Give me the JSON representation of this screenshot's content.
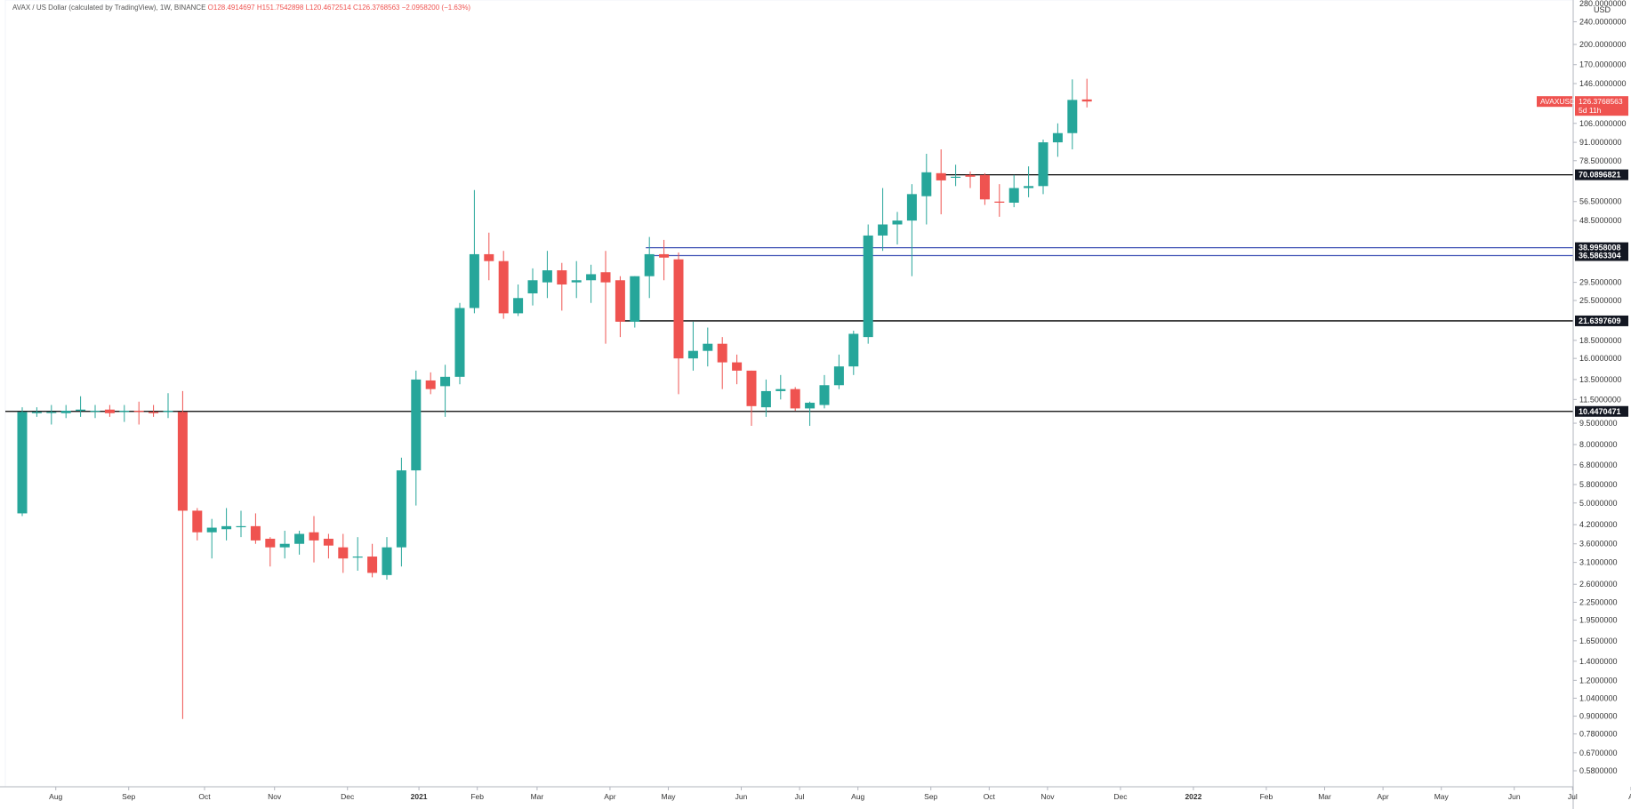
{
  "header": {
    "symbol": "AVAX / US Dollar (calculated by TradingView), 1W, BINANCE",
    "open": "O128.4914697",
    "high": "H151.7542898",
    "low": "L120.4672514",
    "close": "C126.3768563",
    "change": "−2.0958200 (−1.63%)"
  },
  "axis": {
    "currency": "USD",
    "scale": "log",
    "top_label": "280.0000000"
  },
  "colors": {
    "up": "#26a69a",
    "down": "#ef5350",
    "hline": "#000000",
    "blueline": "#3f51b5",
    "grid": "#f0f3fa",
    "axis": "#b2b5be"
  },
  "chart_data": {
    "type": "candlestick",
    "scale": "log",
    "y_ticks": [
      "240.0000000",
      "200.0000000",
      "170.0000000",
      "146.0000000",
      "106.0000000",
      "91.0000000",
      "78.5000000",
      "56.5000000",
      "48.5000000",
      "29.5000000",
      "25.5000000",
      "18.5000000",
      "16.0000000",
      "13.5000000",
      "11.5000000",
      "9.5000000",
      "8.0000000",
      "6.8000000",
      "5.8000000",
      "5.0000000",
      "4.2000000",
      "3.6000000",
      "3.1000000",
      "2.6000000",
      "2.2500000",
      "1.9500000",
      "1.6500000",
      "1.4000000",
      "1.2000000",
      "1.0400000",
      "0.9000000",
      "0.7800000",
      "0.6700000",
      "0.5800000"
    ],
    "x_ticks": [
      "Aug",
      "Sep",
      "Oct",
      "Nov",
      "Dec",
      "2021",
      "Feb",
      "Mar",
      "Apr",
      "May",
      "Jun",
      "Jul",
      "Aug",
      "Sep",
      "Oct",
      "Nov",
      "Dec",
      "2022",
      "Feb",
      "Mar",
      "Apr",
      "May",
      "Jun",
      "Jul",
      "A"
    ],
    "x_tick_positions_weeks": [
      2.3,
      7.3,
      12.5,
      17.3,
      22.3,
      27.2,
      31.2,
      35.3,
      40.3,
      44.3,
      49.3,
      53.3,
      57.3,
      62.3,
      66.3,
      70.3,
      75.3,
      80.3,
      85.3,
      89.3,
      93.3,
      97.3,
      102.3,
      106.3,
      110.3
    ],
    "candles": [
      {
        "o": 4.6,
        "h": 10.8,
        "l": 4.5,
        "c": 10.4
      },
      {
        "o": 10.3,
        "h": 10.8,
        "l": 10.0,
        "c": 10.4
      },
      {
        "o": 10.4,
        "h": 11.0,
        "l": 9.4,
        "c": 10.4
      },
      {
        "o": 10.3,
        "h": 11.0,
        "l": 9.9,
        "c": 10.5
      },
      {
        "o": 10.5,
        "h": 11.8,
        "l": 10.0,
        "c": 10.6
      },
      {
        "o": 10.5,
        "h": 11.0,
        "l": 9.9,
        "c": 10.5
      },
      {
        "o": 10.6,
        "h": 11.0,
        "l": 10.0,
        "c": 10.3
      },
      {
        "o": 10.4,
        "h": 11.0,
        "l": 9.6,
        "c": 10.5
      },
      {
        "o": 10.5,
        "h": 11.3,
        "l": 9.4,
        "c": 10.4
      },
      {
        "o": 10.4,
        "h": 11.0,
        "l": 10.0,
        "c": 10.3
      },
      {
        "o": 10.4,
        "h": 12.1,
        "l": 9.9,
        "c": 10.5
      },
      {
        "o": 10.4,
        "h": 12.3,
        "l": 0.88,
        "c": 4.7
      },
      {
        "o": 4.7,
        "h": 4.8,
        "l": 3.7,
        "c": 3.95
      },
      {
        "o": 3.95,
        "h": 4.4,
        "l": 3.2,
        "c": 4.1
      },
      {
        "o": 4.05,
        "h": 4.8,
        "l": 3.7,
        "c": 4.15
      },
      {
        "o": 4.15,
        "h": 4.7,
        "l": 3.8,
        "c": 4.15
      },
      {
        "o": 4.15,
        "h": 4.6,
        "l": 3.6,
        "c": 3.7
      },
      {
        "o": 3.75,
        "h": 3.8,
        "l": 3.0,
        "c": 3.5
      },
      {
        "o": 3.5,
        "h": 4.0,
        "l": 3.2,
        "c": 3.6
      },
      {
        "o": 3.6,
        "h": 4.0,
        "l": 3.3,
        "c": 3.9
      },
      {
        "o": 3.95,
        "h": 4.5,
        "l": 3.1,
        "c": 3.7
      },
      {
        "o": 3.75,
        "h": 3.9,
        "l": 3.2,
        "c": 3.55
      },
      {
        "o": 3.5,
        "h": 3.9,
        "l": 2.85,
        "c": 3.2
      },
      {
        "o": 3.25,
        "h": 3.8,
        "l": 2.9,
        "c": 3.25
      },
      {
        "o": 3.25,
        "h": 3.6,
        "l": 2.75,
        "c": 2.85
      },
      {
        "o": 2.8,
        "h": 3.8,
        "l": 2.7,
        "c": 3.5
      },
      {
        "o": 3.5,
        "h": 7.2,
        "l": 3.0,
        "c": 6.5
      },
      {
        "o": 6.5,
        "h": 14.5,
        "l": 4.9,
        "c": 13.5
      },
      {
        "o": 13.4,
        "h": 14.3,
        "l": 12.0,
        "c": 12.5
      },
      {
        "o": 12.8,
        "h": 15.2,
        "l": 10.0,
        "c": 13.8
      },
      {
        "o": 13.8,
        "h": 25.0,
        "l": 13.0,
        "c": 24.0
      },
      {
        "o": 24.0,
        "h": 62.0,
        "l": 23.0,
        "c": 37.0
      },
      {
        "o": 37.0,
        "h": 44.0,
        "l": 30.0,
        "c": 35.0
      },
      {
        "o": 35.0,
        "h": 38.0,
        "l": 22.0,
        "c": 23.0
      },
      {
        "o": 23.0,
        "h": 29.0,
        "l": 22.5,
        "c": 26.0
      },
      {
        "o": 27.0,
        "h": 33.0,
        "l": 24.5,
        "c": 30.0
      },
      {
        "o": 29.5,
        "h": 38.0,
        "l": 26.0,
        "c": 32.5
      },
      {
        "o": 32.5,
        "h": 34.5,
        "l": 23.5,
        "c": 29.0
      },
      {
        "o": 29.5,
        "h": 35.0,
        "l": 26.0,
        "c": 30.0
      },
      {
        "o": 30.0,
        "h": 34.0,
        "l": 25.0,
        "c": 31.5
      },
      {
        "o": 32.0,
        "h": 38.0,
        "l": 18.0,
        "c": 29.5
      },
      {
        "o": 30.0,
        "h": 31.0,
        "l": 19.0,
        "c": 21.5
      },
      {
        "o": 21.5,
        "h": 31.0,
        "l": 20.5,
        "c": 31.0
      },
      {
        "o": 31.0,
        "h": 42.5,
        "l": 26.0,
        "c": 37.0
      },
      {
        "o": 37.0,
        "h": 41.5,
        "l": 30.0,
        "c": 36.0
      },
      {
        "o": 35.5,
        "h": 37.5,
        "l": 12.0,
        "c": 16.0
      },
      {
        "o": 16.0,
        "h": 21.5,
        "l": 14.5,
        "c": 17.0
      },
      {
        "o": 17.0,
        "h": 20.5,
        "l": 15.0,
        "c": 18.0
      },
      {
        "o": 18.0,
        "h": 19.0,
        "l": 12.5,
        "c": 15.5
      },
      {
        "o": 15.5,
        "h": 16.5,
        "l": 13.0,
        "c": 14.5
      },
      {
        "o": 14.5,
        "h": 14.5,
        "l": 9.3,
        "c": 10.9
      },
      {
        "o": 10.8,
        "h": 13.5,
        "l": 10.0,
        "c": 12.3
      },
      {
        "o": 12.3,
        "h": 14.0,
        "l": 11.5,
        "c": 12.5
      },
      {
        "o": 12.5,
        "h": 12.7,
        "l": 10.5,
        "c": 10.7
      },
      {
        "o": 10.7,
        "h": 11.3,
        "l": 9.3,
        "c": 11.2
      },
      {
        "o": 11.0,
        "h": 14.0,
        "l": 10.7,
        "c": 12.9
      },
      {
        "o": 12.9,
        "h": 16.5,
        "l": 12.5,
        "c": 15.0
      },
      {
        "o": 15.0,
        "h": 20.0,
        "l": 14.0,
        "c": 19.5
      },
      {
        "o": 19.0,
        "h": 47.0,
        "l": 18.0,
        "c": 43.0
      },
      {
        "o": 43.0,
        "h": 63.0,
        "l": 38.0,
        "c": 47.0
      },
      {
        "o": 47.0,
        "h": 52.0,
        "l": 40.0,
        "c": 48.5
      },
      {
        "o": 48.5,
        "h": 65.0,
        "l": 31.0,
        "c": 60.0
      },
      {
        "o": 59.0,
        "h": 83.0,
        "l": 47.0,
        "c": 71.5
      },
      {
        "o": 71.0,
        "h": 86.0,
        "l": 51.0,
        "c": 67.0
      },
      {
        "o": 69.0,
        "h": 76.0,
        "l": 64.0,
        "c": 69.0
      },
      {
        "o": 70.0,
        "h": 72.0,
        "l": 63.0,
        "c": 69.0
      },
      {
        "o": 70.0,
        "h": 71.0,
        "l": 55.0,
        "c": 57.5
      },
      {
        "o": 56.5,
        "h": 65.0,
        "l": 50.0,
        "c": 56.0
      },
      {
        "o": 56.0,
        "h": 70.0,
        "l": 54.0,
        "c": 63.0
      },
      {
        "o": 63.0,
        "h": 75.0,
        "l": 58.5,
        "c": 64.0
      },
      {
        "o": 64.0,
        "h": 93.0,
        "l": 60.0,
        "c": 91.0
      },
      {
        "o": 91.0,
        "h": 106.0,
        "l": 81.0,
        "c": 98.0
      },
      {
        "o": 98.0,
        "h": 151.0,
        "l": 86.0,
        "c": 128.0
      },
      {
        "o": 128.49,
        "h": 151.75,
        "l": 120.47,
        "c": 126.38
      }
    ],
    "levels": [
      {
        "price": 70.0896821,
        "label": "70.0896821",
        "style": "black",
        "start_week": 63
      },
      {
        "price": 38.9958008,
        "label": "38.9958008",
        "style": "blue",
        "start_week": 43
      },
      {
        "price": 36.5863304,
        "label": "36.5863304",
        "style": "blue",
        "start_week": 43
      },
      {
        "price": 21.6397609,
        "label": "21.6397609",
        "style": "black",
        "start_week": 41
      },
      {
        "price": 10.4470471,
        "label": "10.4470471",
        "style": "black",
        "start_week": 0
      }
    ],
    "current": {
      "symbol": "AVAXUSD",
      "price_label": "126.3768563",
      "countdown": "5d 11h",
      "price": 126.3768563
    }
  }
}
